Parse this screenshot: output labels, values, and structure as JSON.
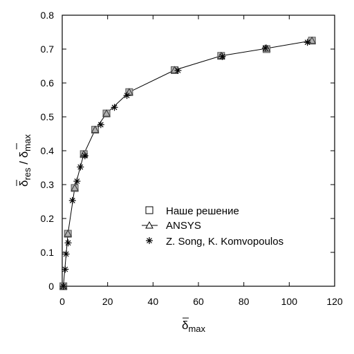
{
  "chart_data": {
    "type": "scatter",
    "xlabel": "δ̄max",
    "ylabel": "δ̄res / δ̄max",
    "xlim": [
      0,
      120
    ],
    "ylim": [
      0,
      0.8
    ],
    "xticks": [
      0,
      20,
      40,
      60,
      80,
      100,
      120
    ],
    "yticks": [
      0,
      0.1,
      0.2,
      0.3,
      0.4,
      0.5,
      0.6,
      0.7,
      0.8
    ],
    "legend_position": "center-right",
    "grid": false,
    "series": [
      {
        "name": "Наше решение",
        "marker": "square",
        "line": false,
        "x": [
          0.5,
          2.5,
          5.5,
          9.5,
          14.5,
          19.5,
          29.5,
          49.5,
          70,
          90,
          110
        ],
        "y": [
          0.0,
          0.155,
          0.29,
          0.39,
          0.462,
          0.51,
          0.573,
          0.638,
          0.68,
          0.7,
          0.725
        ]
      },
      {
        "name": "ANSYS",
        "marker": "triangle",
        "line": true,
        "x": [
          0.5,
          2.5,
          5.5,
          9.5,
          14.5,
          19.5,
          29.5,
          49.5,
          70,
          90,
          110
        ],
        "y": [
          0.0,
          0.155,
          0.29,
          0.39,
          0.462,
          0.51,
          0.573,
          0.638,
          0.68,
          0.702,
          0.725
        ]
      },
      {
        "name": "Z. Song, K. Komvopoulos",
        "marker": "star",
        "line": false,
        "x": [
          0.5,
          1.3,
          1.7,
          2.6,
          4.5,
          6.5,
          8.0,
          10.0,
          17.0,
          23.0,
          28.5,
          51.0,
          70.5,
          89.5,
          108.0
        ],
        "y": [
          0.0,
          0.05,
          0.095,
          0.128,
          0.253,
          0.31,
          0.352,
          0.385,
          0.477,
          0.528,
          0.563,
          0.637,
          0.678,
          0.703,
          0.72
        ]
      }
    ]
  },
  "legend": {
    "items": [
      "Наше решение",
      "ANSYS",
      "Z. Song, K. Komvopoulos"
    ]
  },
  "axes": {
    "x_title_main": "δ",
    "x_title_sub": "max",
    "y_title_num_main": "δ",
    "y_title_num_sub": "res",
    "y_title_sep": " / ",
    "y_title_den_main": "δ",
    "y_title_den_sub": "max"
  }
}
